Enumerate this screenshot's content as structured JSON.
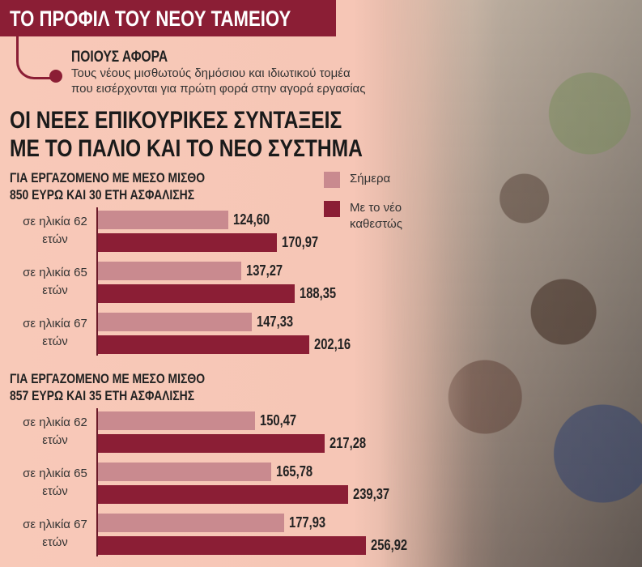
{
  "header": {
    "title": "ΤΟ ΠΡΟΦΙΛ ΤΟΥ ΝΕΟΥ ΤΑΜΕΙΟΥ",
    "section_label": "ΠΟΙΟΥΣ ΑΦΟΡΑ",
    "section_text": [
      "Τους νέους μισθωτούς δημόσιου και ιδιωτικού τομέα",
      "που εισέρχονται για πρώτη φορά στην αγορά εργασίας"
    ]
  },
  "headline": [
    "ΟΙ ΝΕΕΣ ΕΠΙΚΟΥΡΙΚΕΣ ΣΥΝΤΑΞΕΙΣ",
    "ΜΕ ΤΟ ΠΑΛΙΟ ΚΑΙ ΤΟ ΝΕΟ ΣΥΣΤΗΜΑ"
  ],
  "chart_data": [
    {
      "type": "bar",
      "orientation": "horizontal",
      "subtitle": [
        "ΓΙΑ ΕΡΓΑΖΟΜΕΝΟ ΜΕ ΜΕΣΟ ΜΙΣΘΟ",
        "850 ΕΥΡΩ ΚΑΙ 30 ΕΤΗ ΑΣΦΑΛΙΣΗΣ"
      ],
      "categories": [
        "σε ηλικία 62 ετών",
        "σε ηλικία 65 ετών",
        "σε ηλικία 67 ετών"
      ],
      "series": [
        {
          "name": "Σήμερα",
          "color": "#c98a8f",
          "values": [
            124.6,
            137.27,
            147.33
          ],
          "value_labels": [
            "124,60",
            "137,27",
            "147,33"
          ]
        },
        {
          "name": "Με το νέο καθεστώς",
          "color": "#8b1e35",
          "values": [
            170.97,
            188.35,
            202.16
          ],
          "value_labels": [
            "170,97",
            "188,35",
            "202,16"
          ]
        }
      ]
    },
    {
      "type": "bar",
      "orientation": "horizontal",
      "subtitle": [
        "ΓΙΑ ΕΡΓΑΖΟΜΕΝΟ ΜΕ ΜΕΣΟ ΜΙΣΘΟ",
        "857 ΕΥΡΩ ΚΑΙ 35 ΕΤΗ ΑΣΦΑΛΙΣΗΣ"
      ],
      "categories": [
        "σε ηλικία 62 ετών",
        "σε ηλικία 65 ετών",
        "σε ηλικία 67 ετών"
      ],
      "series": [
        {
          "color": "#c98a8f",
          "values": [
            150.47,
            165.78,
            177.93
          ],
          "value_labels": [
            "150,47",
            "165,78",
            "177,93"
          ]
        },
        {
          "color": "#8b1e35",
          "values": [
            217.28,
            239.37,
            256.92
          ],
          "value_labels": [
            "217,28",
            "239,37",
            "256,92"
          ]
        }
      ]
    }
  ]
}
